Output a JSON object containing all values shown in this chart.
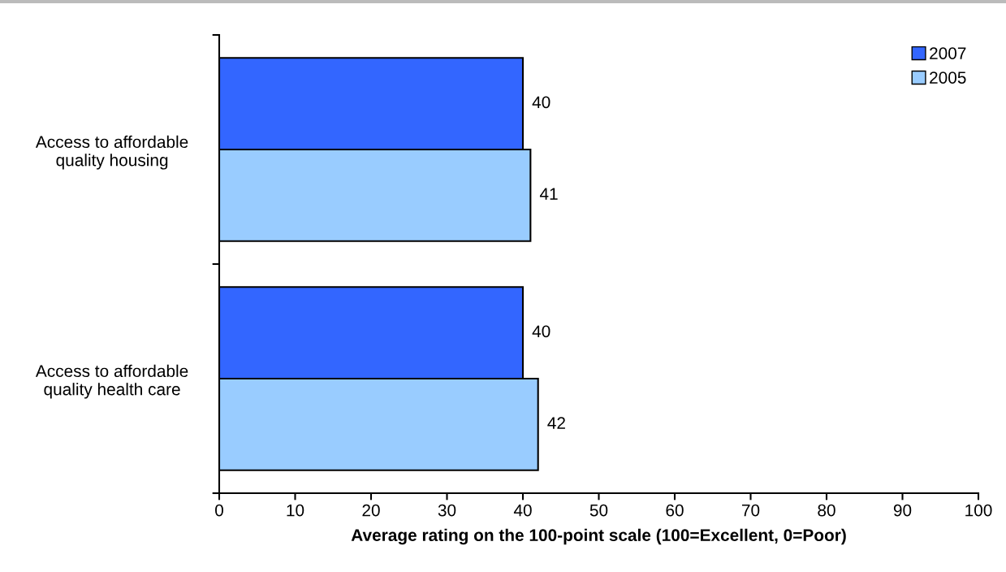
{
  "chart_data": {
    "type": "bar",
    "orientation": "horizontal",
    "categories": [
      "Access to affordable\nquality housing",
      "Access to affordable\nquality health care"
    ],
    "series": [
      {
        "name": "2007",
        "color": "#3366ff",
        "values": [
          40,
          40
        ]
      },
      {
        "name": "2005",
        "color": "#99ccff",
        "values": [
          41,
          42
        ]
      }
    ],
    "xlabel": "Average rating on the 100-point scale (100=Excellent, 0=Poor)",
    "xlim": [
      0,
      100
    ],
    "xticks": [
      0,
      10,
      20,
      30,
      40,
      50,
      60,
      70,
      80,
      90,
      100
    ],
    "data_labels": true,
    "grid": false,
    "legend": "top right"
  }
}
